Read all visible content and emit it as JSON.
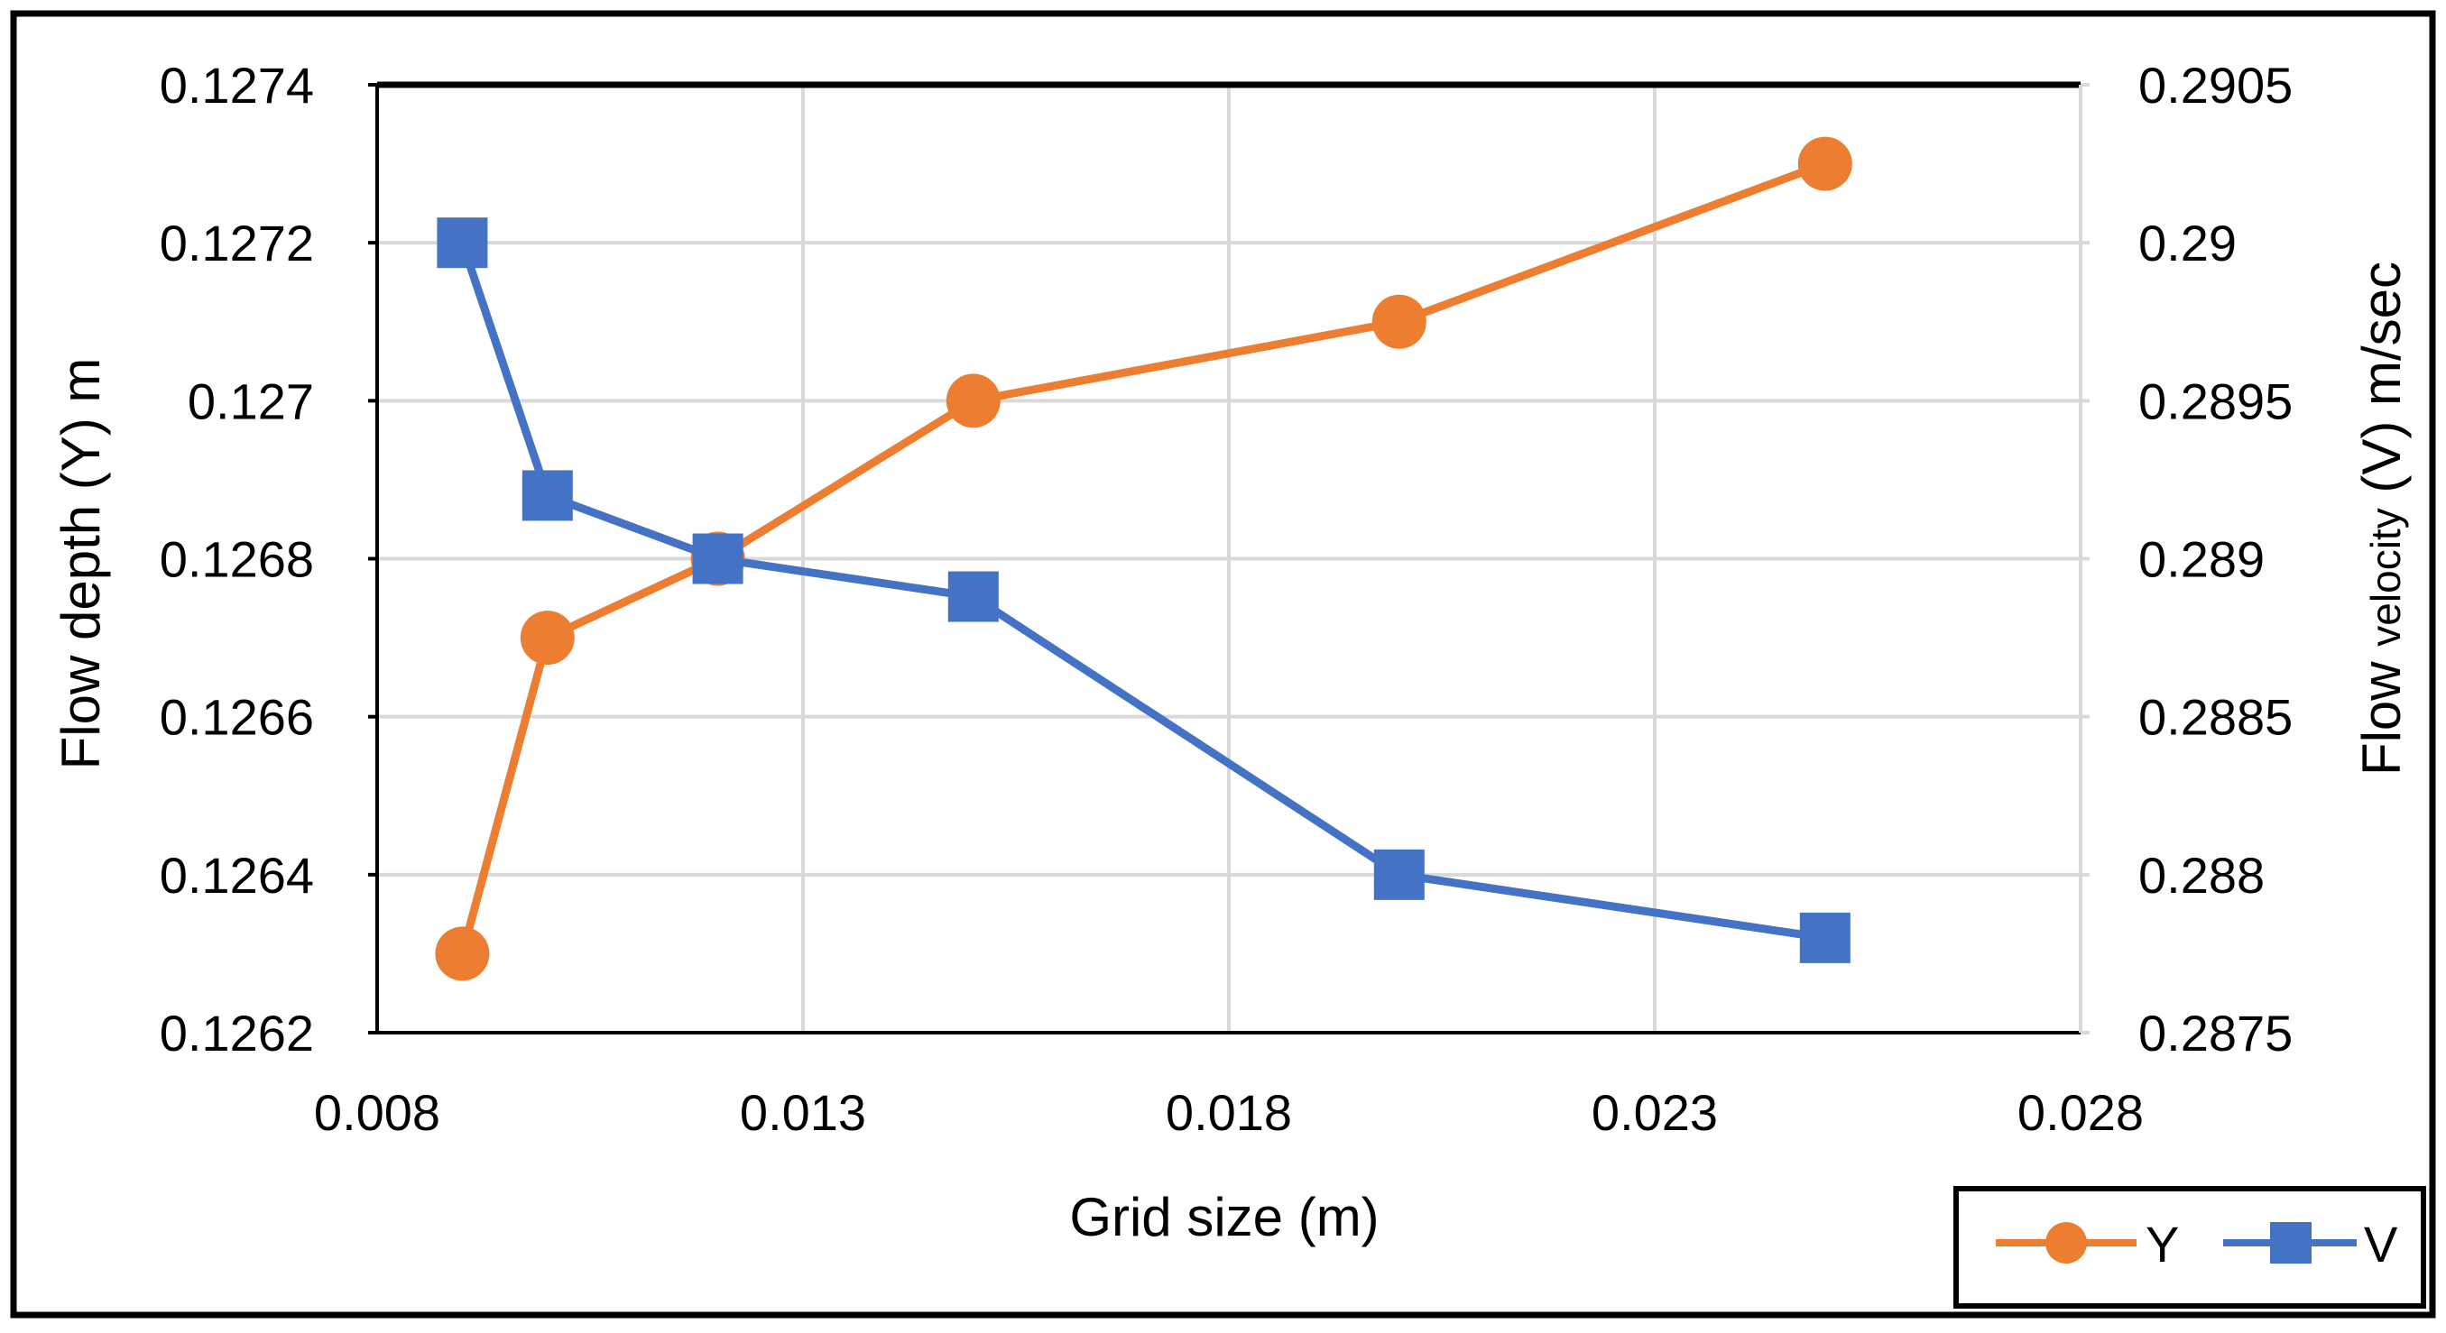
{
  "chart_data": {
    "type": "line",
    "title": "",
    "xlabel": "Grid size (m)",
    "ylabel": "Flow depth (Y) m",
    "ylabel_right_parts": [
      "Flow ",
      "velocity",
      " (V) m/sec"
    ],
    "x_ticks": [
      "0.008",
      "0.013",
      "0.018",
      "0.023",
      "0.028"
    ],
    "x_tick_values": [
      0.008,
      0.013,
      0.018,
      0.023,
      0.028
    ],
    "xlim": [
      0.008,
      0.028
    ],
    "y_left_ticks": [
      "0.1262",
      "0.1264",
      "0.1266",
      "0.1268",
      "0.127",
      "0.1272",
      "0.1274"
    ],
    "y_left_tick_values": [
      0.1262,
      0.1264,
      0.1266,
      0.1268,
      0.127,
      0.1272,
      0.1274
    ],
    "ylim_left": [
      0.1262,
      0.1274
    ],
    "y_right_ticks": [
      "0.2875",
      "0.288",
      "0.2885",
      "0.289",
      "0.2895",
      "0.29",
      "0.2905"
    ],
    "y_right_tick_values": [
      0.2875,
      0.288,
      0.2885,
      0.289,
      0.2895,
      0.29,
      0.2905
    ],
    "ylim_right": [
      0.2875,
      0.2905
    ],
    "grid": true,
    "legend_position": "bottom-right",
    "series": [
      {
        "name": "Y",
        "axis": "left",
        "marker": "circle",
        "color": "#ED7D31",
        "x": [
          0.009,
          0.01,
          0.012,
          0.015,
          0.02,
          0.025
        ],
        "values": [
          0.1263,
          0.1267,
          0.1268,
          0.127,
          0.1271,
          0.1273
        ]
      },
      {
        "name": "V",
        "axis": "right",
        "marker": "square",
        "color": "#4472C4",
        "x": [
          0.009,
          0.01,
          0.012,
          0.015,
          0.02,
          0.025
        ],
        "values": [
          0.29,
          0.2892,
          0.289,
          0.28888,
          0.288,
          0.2878
        ]
      }
    ]
  },
  "colors": {
    "grid": "#D9D9D9",
    "axis": "#000000",
    "frame": "#000000"
  }
}
